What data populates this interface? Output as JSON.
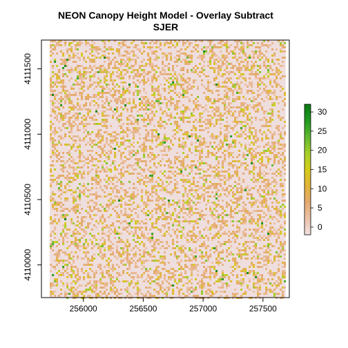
{
  "chart_data": {
    "type": "heatmap",
    "title": [
      "NEON Canopy Height Model - Overlay Subtract",
      "SJER"
    ],
    "xlabel": "",
    "ylabel": "",
    "x_ticks": [
      256000,
      256500,
      257000,
      257500
    ],
    "y_ticks": [
      4110000,
      4110500,
      4111000,
      4111500
    ],
    "x_range": [
      255650,
      257720
    ],
    "y_range": [
      4109750,
      4111720
    ],
    "raster_x_extent": [
      255720,
      257690
    ],
    "raster_y_extent": [
      4109750,
      4111720
    ],
    "colorbar": {
      "ticks": [
        0,
        5,
        10,
        15,
        20,
        25,
        30
      ],
      "range": [
        -2,
        32
      ],
      "palette": [
        "#f2e0e0",
        "#ebc3a8",
        "#e4a96f",
        "#e2b43a",
        "#d4cc1a",
        "#a5cf2a",
        "#5fb82f",
        "#1f9a1f",
        "#0a7a12"
      ]
    },
    "distribution": {
      "pixel_value_mostly_near": 0,
      "scattered_values_up_to": 31
    },
    "legend_position": "right",
    "grid": false
  }
}
